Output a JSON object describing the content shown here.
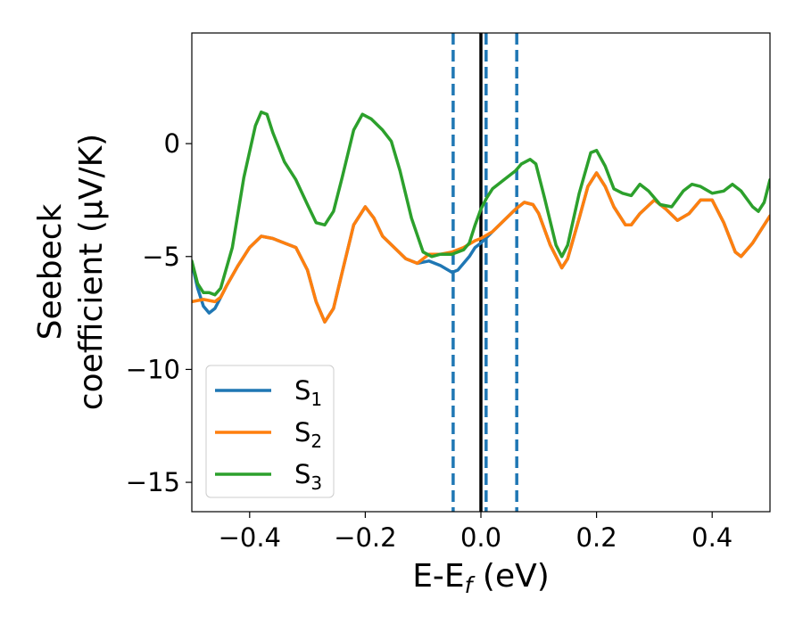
{
  "chart_data": {
    "type": "line",
    "xlabel": {
      "main": "E-E",
      "sub": "f",
      "unit": " (eV)"
    },
    "ylabel": {
      "line1": "Seebeck",
      "line2": "coefficient  (μV/K)"
    },
    "xlim": [
      -0.5,
      0.5
    ],
    "ylim": [
      -16.3,
      4.9
    ],
    "xticks": [
      -0.4,
      -0.2,
      0.0,
      0.2,
      0.4
    ],
    "xtick_labels": [
      "−0.4",
      "−0.2",
      "0.0",
      "0.2",
      "0.4"
    ],
    "yticks": [
      0,
      -5,
      -10,
      -15
    ],
    "ytick_labels": [
      "0",
      "−5",
      "−10",
      "−15"
    ],
    "grid": false,
    "legend_position": "lower-left",
    "vlines": [
      {
        "x": -0.048,
        "style": "dashed",
        "color": "#1f77b4"
      },
      {
        "x": 0.009,
        "style": "dashed",
        "color": "#1f77b4"
      },
      {
        "x": 0.062,
        "style": "dashed",
        "color": "#1f77b4"
      },
      {
        "x": 0.0,
        "style": "solid",
        "color": "#000000"
      }
    ],
    "series": [
      {
        "name": "S",
        "sub": "1",
        "color": "#1f77b4",
        "points": [
          [
            -0.5,
            -5.3
          ],
          [
            -0.49,
            -6.4
          ],
          [
            -0.48,
            -7.2
          ],
          [
            -0.47,
            -7.5
          ],
          [
            -0.46,
            -7.3
          ],
          [
            -0.45,
            -6.8
          ],
          [
            -0.44,
            -6.3
          ],
          [
            -0.42,
            -5.4
          ],
          [
            -0.4,
            -4.6
          ],
          [
            -0.38,
            -4.1
          ],
          [
            -0.36,
            -4.2
          ],
          [
            -0.34,
            -4.4
          ],
          [
            -0.32,
            -4.6
          ],
          [
            -0.3,
            -5.6
          ],
          [
            -0.285,
            -7.0
          ],
          [
            -0.27,
            -7.9
          ],
          [
            -0.255,
            -7.3
          ],
          [
            -0.24,
            -5.7
          ],
          [
            -0.22,
            -3.6
          ],
          [
            -0.2,
            -2.8
          ],
          [
            -0.185,
            -3.3
          ],
          [
            -0.17,
            -4.1
          ],
          [
            -0.15,
            -4.6
          ],
          [
            -0.13,
            -5.1
          ],
          [
            -0.11,
            -5.3
          ],
          [
            -0.09,
            -5.2
          ],
          [
            -0.07,
            -5.4
          ],
          [
            -0.05,
            -5.7
          ],
          [
            -0.04,
            -5.6
          ],
          [
            -0.02,
            -5.0
          ],
          [
            -0.01,
            -4.6
          ],
          [
            0.0,
            -4.4
          ],
          [
            0.02,
            -3.9
          ],
          [
            0.04,
            -3.4
          ],
          [
            0.06,
            -2.9
          ],
          [
            0.075,
            -2.6
          ],
          [
            0.09,
            -2.7
          ],
          [
            0.1,
            -3.1
          ],
          [
            0.12,
            -4.5
          ],
          [
            0.14,
            -5.5
          ],
          [
            0.15,
            -5.1
          ],
          [
            0.17,
            -3.3
          ],
          [
            0.185,
            -1.9
          ],
          [
            0.2,
            -1.3
          ],
          [
            0.215,
            -1.9
          ],
          [
            0.23,
            -2.8
          ],
          [
            0.25,
            -3.6
          ],
          [
            0.26,
            -3.6
          ],
          [
            0.275,
            -3.1
          ],
          [
            0.3,
            -2.5
          ],
          [
            0.32,
            -2.9
          ],
          [
            0.34,
            -3.4
          ],
          [
            0.36,
            -3.1
          ],
          [
            0.38,
            -2.5
          ],
          [
            0.4,
            -2.5
          ],
          [
            0.42,
            -3.5
          ],
          [
            0.44,
            -4.8
          ],
          [
            0.45,
            -5.0
          ],
          [
            0.47,
            -4.4
          ],
          [
            0.49,
            -3.6
          ],
          [
            0.5,
            -3.2
          ]
        ]
      },
      {
        "name": "S",
        "sub": "2",
        "color": "#ff7f0e",
        "points": [
          [
            -0.5,
            -7.0
          ],
          [
            -0.48,
            -6.9
          ],
          [
            -0.46,
            -7.0
          ],
          [
            -0.45,
            -6.8
          ],
          [
            -0.44,
            -6.3
          ],
          [
            -0.42,
            -5.4
          ],
          [
            -0.4,
            -4.6
          ],
          [
            -0.38,
            -4.1
          ],
          [
            -0.36,
            -4.2
          ],
          [
            -0.34,
            -4.4
          ],
          [
            -0.32,
            -4.6
          ],
          [
            -0.3,
            -5.6
          ],
          [
            -0.285,
            -7.0
          ],
          [
            -0.27,
            -7.9
          ],
          [
            -0.255,
            -7.3
          ],
          [
            -0.24,
            -5.7
          ],
          [
            -0.22,
            -3.6
          ],
          [
            -0.2,
            -2.8
          ],
          [
            -0.185,
            -3.3
          ],
          [
            -0.17,
            -4.1
          ],
          [
            -0.15,
            -4.6
          ],
          [
            -0.13,
            -5.1
          ],
          [
            -0.11,
            -5.3
          ],
          [
            -0.09,
            -4.9
          ],
          [
            -0.07,
            -4.9
          ],
          [
            -0.05,
            -4.8
          ],
          [
            -0.03,
            -4.6
          ],
          [
            -0.01,
            -4.3
          ],
          [
            0.0,
            -4.2
          ],
          [
            0.02,
            -3.9
          ],
          [
            0.04,
            -3.4
          ],
          [
            0.06,
            -2.9
          ],
          [
            0.075,
            -2.6
          ],
          [
            0.09,
            -2.7
          ],
          [
            0.1,
            -3.1
          ],
          [
            0.12,
            -4.5
          ],
          [
            0.14,
            -5.5
          ],
          [
            0.15,
            -5.1
          ],
          [
            0.17,
            -3.3
          ],
          [
            0.185,
            -1.9
          ],
          [
            0.2,
            -1.3
          ],
          [
            0.215,
            -1.9
          ],
          [
            0.23,
            -2.8
          ],
          [
            0.25,
            -3.6
          ],
          [
            0.26,
            -3.6
          ],
          [
            0.275,
            -3.1
          ],
          [
            0.3,
            -2.5
          ],
          [
            0.32,
            -2.9
          ],
          [
            0.34,
            -3.4
          ],
          [
            0.36,
            -3.1
          ],
          [
            0.38,
            -2.5
          ],
          [
            0.4,
            -2.5
          ],
          [
            0.42,
            -3.5
          ],
          [
            0.44,
            -4.8
          ],
          [
            0.45,
            -5.0
          ],
          [
            0.47,
            -4.4
          ],
          [
            0.49,
            -3.6
          ],
          [
            0.5,
            -3.2
          ]
        ]
      },
      {
        "name": "S",
        "sub": "3",
        "color": "#2ca02c",
        "points": [
          [
            -0.5,
            -5.2
          ],
          [
            -0.49,
            -6.2
          ],
          [
            -0.48,
            -6.6
          ],
          [
            -0.47,
            -6.6
          ],
          [
            -0.46,
            -6.7
          ],
          [
            -0.45,
            -6.4
          ],
          [
            -0.43,
            -4.6
          ],
          [
            -0.41,
            -1.5
          ],
          [
            -0.39,
            0.8
          ],
          [
            -0.38,
            1.4
          ],
          [
            -0.37,
            1.3
          ],
          [
            -0.36,
            0.5
          ],
          [
            -0.34,
            -0.8
          ],
          [
            -0.32,
            -1.6
          ],
          [
            -0.3,
            -2.7
          ],
          [
            -0.285,
            -3.5
          ],
          [
            -0.27,
            -3.6
          ],
          [
            -0.255,
            -3.0
          ],
          [
            -0.24,
            -1.5
          ],
          [
            -0.22,
            0.6
          ],
          [
            -0.205,
            1.3
          ],
          [
            -0.19,
            1.1
          ],
          [
            -0.17,
            0.6
          ],
          [
            -0.155,
            0.1
          ],
          [
            -0.14,
            -1.2
          ],
          [
            -0.12,
            -3.3
          ],
          [
            -0.1,
            -4.8
          ],
          [
            -0.085,
            -5.0
          ],
          [
            -0.07,
            -4.9
          ],
          [
            -0.05,
            -4.9
          ],
          [
            -0.03,
            -4.7
          ],
          [
            -0.02,
            -4.4
          ],
          [
            -0.01,
            -3.6
          ],
          [
            0.0,
            -2.9
          ],
          [
            0.01,
            -2.4
          ],
          [
            0.02,
            -2.0
          ],
          [
            0.04,
            -1.6
          ],
          [
            0.06,
            -1.2
          ],
          [
            0.07,
            -0.9
          ],
          [
            0.085,
            -0.7
          ],
          [
            0.095,
            -0.9
          ],
          [
            0.11,
            -2.4
          ],
          [
            0.13,
            -4.5
          ],
          [
            0.14,
            -5.0
          ],
          [
            0.15,
            -4.5
          ],
          [
            0.17,
            -2.2
          ],
          [
            0.19,
            -0.4
          ],
          [
            0.2,
            -0.3
          ],
          [
            0.215,
            -1.0
          ],
          [
            0.23,
            -2.0
          ],
          [
            0.245,
            -2.2
          ],
          [
            0.26,
            -2.3
          ],
          [
            0.275,
            -1.8
          ],
          [
            0.29,
            -2.1
          ],
          [
            0.31,
            -2.7
          ],
          [
            0.33,
            -2.8
          ],
          [
            0.35,
            -2.1
          ],
          [
            0.365,
            -1.8
          ],
          [
            0.38,
            -1.9
          ],
          [
            0.4,
            -2.2
          ],
          [
            0.42,
            -2.1
          ],
          [
            0.435,
            -1.8
          ],
          [
            0.45,
            -2.1
          ],
          [
            0.47,
            -2.8
          ],
          [
            0.48,
            -3.0
          ],
          [
            0.49,
            -2.6
          ],
          [
            0.5,
            -1.6
          ]
        ]
      }
    ]
  }
}
